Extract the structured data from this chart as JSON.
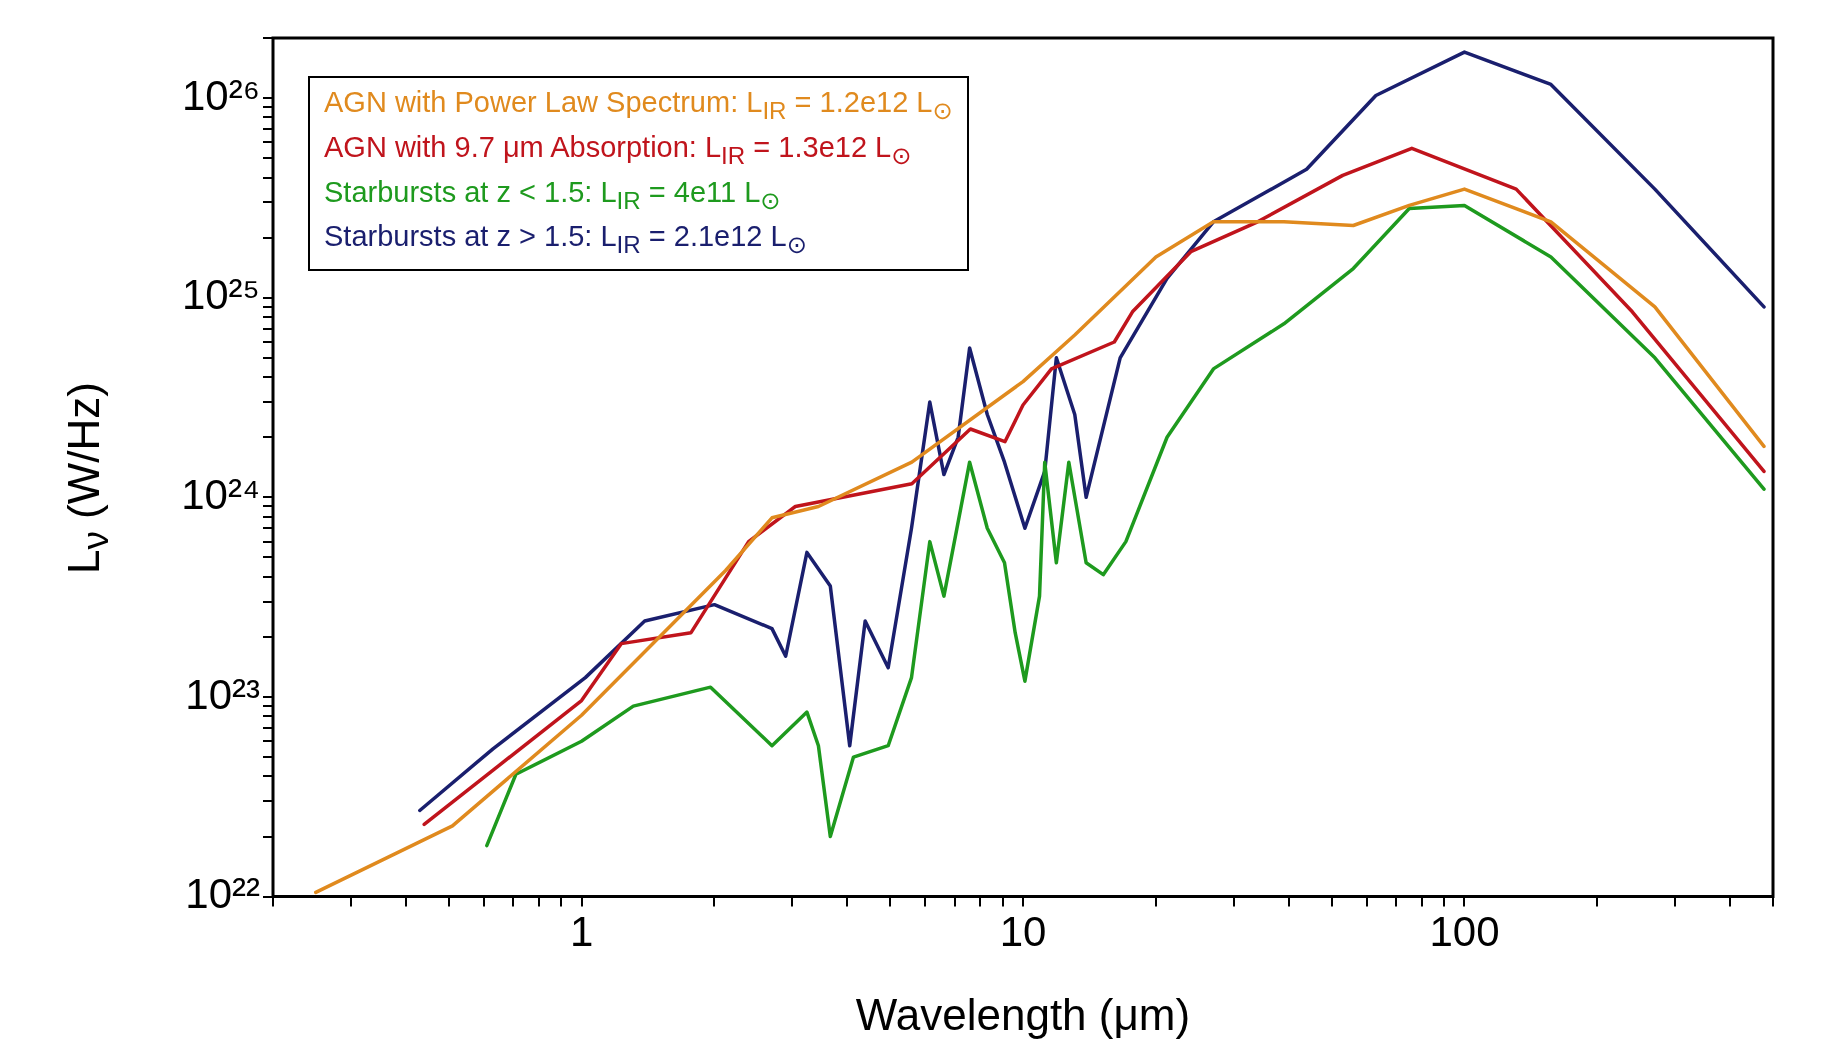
{
  "chart_data": {
    "type": "line",
    "xlabel": "Wavelength (μm)",
    "ylabel": "L$_{ν}$ (W/Hz)",
    "log": "xy",
    "legend": "top left",
    "marker": "none",
    "line_style": "solid",
    "xlim": [
      0.2,
      500
    ],
    "ylim": [
      1e+22,
      2e+26
    ],
    "xticks": [
      {
        "value": 0.2,
        "label": null
      },
      {
        "value": 0.3,
        "label": null
      },
      {
        "value": 0.4,
        "label": null
      },
      {
        "value": 0.5,
        "label": null
      },
      {
        "value": 0.6,
        "label": null
      },
      {
        "value": 0.7,
        "label": null
      },
      {
        "value": 0.8,
        "label": null
      },
      {
        "value": 0.9,
        "label": null
      },
      1,
      {
        "value": 2,
        "label": null
      },
      {
        "value": 3,
        "label": null
      },
      {
        "value": 4,
        "label": null
      },
      {
        "value": 5,
        "label": null
      },
      {
        "value": 6,
        "label": null
      },
      {
        "value": 7,
        "label": null
      },
      {
        "value": 8,
        "label": null
      },
      {
        "value": 9,
        "label": null
      },
      10,
      {
        "value": 20,
        "label": null
      },
      {
        "value": 30,
        "label": null
      },
      {
        "value": 40,
        "label": null
      },
      {
        "value": 50,
        "label": null
      },
      {
        "value": 60,
        "label": null
      },
      {
        "value": 70,
        "label": null
      },
      {
        "value": 80,
        "label": null
      },
      {
        "value": 90,
        "label": null
      },
      100,
      {
        "value": 200,
        "label": null
      },
      {
        "value": 300,
        "label": null
      },
      {
        "value": 400,
        "label": null
      },
      {
        "value": 500,
        "label": null
      }
    ],
    "yticks": [
      {
        "value": 1e+22,
        "label": "10²²"
      },
      {
        "value": 2e+22,
        "label": null
      },
      {
        "value": 3e+22,
        "label": null
      },
      {
        "value": 4e+22,
        "label": null
      },
      {
        "value": 5e+22,
        "label": null
      },
      {
        "value": 6e+22,
        "label": null
      },
      {
        "value": 7e+22,
        "label": null
      },
      {
        "value": 8e+22,
        "label": null
      },
      {
        "value": 9e+22,
        "label": null
      },
      {
        "value": 1e+23,
        "label": "10²³"
      },
      {
        "value": 2e+23,
        "label": null
      },
      {
        "value": 3e+23,
        "label": null
      },
      {
        "value": 4e+23,
        "label": null
      },
      {
        "value": 5e+23,
        "label": null
      },
      {
        "value": 6e+23,
        "label": null
      },
      {
        "value": 7e+23,
        "label": null
      },
      {
        "value": 8e+23,
        "label": null
      },
      {
        "value": 9e+23,
        "label": null
      },
      {
        "value": 1e+24,
        "label": "10²⁴"
      },
      {
        "value": 2e+24,
        "label": null
      },
      {
        "value": 3e+24,
        "label": null
      },
      {
        "value": 4e+24,
        "label": null
      },
      {
        "value": 5e+24,
        "label": null
      },
      {
        "value": 6e+24,
        "label": null
      },
      {
        "value": 7e+24,
        "label": null
      },
      {
        "value": 8e+24,
        "label": null
      },
      {
        "value": 9e+24,
        "label": null
      },
      {
        "value": 1e+25,
        "label": "10²⁵"
      },
      {
        "value": 2e+25,
        "label": null
      },
      {
        "value": 3e+25,
        "label": null
      },
      {
        "value": 4e+25,
        "label": null
      },
      {
        "value": 5e+25,
        "label": null
      },
      {
        "value": 6e+25,
        "label": null
      },
      {
        "value": 7e+25,
        "label": null
      },
      {
        "value": 8e+25,
        "label": null
      },
      {
        "value": 9e+25,
        "label": null
      },
      {
        "value": 1e+26,
        "label": "10²⁶"
      },
      {
        "value": 2e+26,
        "label": null
      }
    ],
    "series": [
      {
        "name": "AGN with Power Law Spectrum: L$_{IR}$ = 1.2e12 L$_{⊙}$",
        "color": "#e08a1e",
        "x": [
          0.25,
          0.51,
          1,
          2.12,
          2.7,
          3.44,
          5.6,
          10,
          13.1,
          20,
          27,
          39,
          56,
          75,
          100,
          157,
          270,
          477
        ],
        "values": [
          1.05e+22,
          2.26e+22,
          8.1e+22,
          4.3e+23,
          7.9e+23,
          9e+23,
          1.5e+24,
          3.8e+24,
          6.5e+24,
          1.6e+25,
          2.4e+25,
          2.4e+25,
          2.3e+25,
          2.9e+25,
          3.5e+25,
          2.4e+25,
          9e+24,
          1.8e+24
        ]
      },
      {
        "name": "AGN with 9.7 μm Absorption: L$_{IR}$ = 1.3e12 L$_{⊙}$",
        "color": "#c0141c",
        "x": [
          0.44,
          1,
          1.23,
          1.77,
          2.39,
          3.05,
          5.6,
          7.6,
          9.1,
          10,
          11.6,
          16.1,
          17.7,
          24,
          34,
          53,
          76,
          131,
          240,
          477
        ],
        "values": [
          2.3e+22,
          9.6e+22,
          1.85e+23,
          2.1e+23,
          6e+23,
          9e+23,
          1.17e+24,
          2.2e+24,
          1.9e+24,
          2.9e+24,
          4.4e+24,
          6e+24,
          8.5e+24,
          1.7e+25,
          2.4e+25,
          4.1e+25,
          5.6e+25,
          3.5e+25,
          8.5e+24,
          1.35e+24
        ]
      },
      {
        "name": "Starbursts at z < 1.5: L$_{IR}$ = 4e11 L$_{⊙}$",
        "color": "#1e9a1e",
        "x": [
          0.61,
          0.71,
          1,
          1.31,
          1.96,
          2.7,
          3.24,
          3.44,
          3.66,
          4.13,
          4.95,
          5.59,
          6.15,
          6.62,
          7.57,
          8.3,
          9.08,
          9.6,
          10.1,
          10.9,
          11.2,
          11.9,
          12.7,
          13.9,
          15.2,
          17.1,
          21.2,
          27,
          39,
          56,
          75,
          100,
          157,
          270,
          477
        ],
        "values": [
          1.8e+22,
          4.1e+22,
          6e+22,
          9e+22,
          1.12e+23,
          5.7e+22,
          8.4e+22,
          5.7e+22,
          2e+22,
          5e+22,
          5.7e+22,
          1.25e+23,
          6e+23,
          3.2e+23,
          1.5e+24,
          7e+23,
          4.7e+23,
          2.1e+23,
          1.2e+23,
          3.2e+23,
          1.5e+24,
          4.7e+23,
          1.5e+24,
          4.7e+23,
          4.1e+23,
          6e+23,
          2e+24,
          4.4e+24,
          7.4e+24,
          1.4e+25,
          2.8e+25,
          2.9e+25,
          1.6e+25,
          5e+24,
          1.1e+24
        ]
      },
      {
        "name": "Starbursts at z > 1.5: L$_{IR}$ = 2.1e12 L$_{⊙}$",
        "color": "#1a1f6e",
        "x": [
          0.43,
          0.63,
          1.02,
          1.39,
          2,
          2.7,
          2.9,
          3.24,
          3.66,
          4.05,
          4.39,
          4.95,
          5.59,
          6.15,
          6.62,
          7.13,
          7.57,
          8.3,
          9.08,
          10.1,
          11.2,
          11.9,
          13.1,
          13.9,
          16.6,
          21.2,
          27,
          43.9,
          63,
          100,
          157,
          270,
          477
        ],
        "values": [
          2.7e+22,
          5.5e+22,
          1.25e+23,
          2.4e+23,
          2.9e+23,
          2.2e+23,
          1.6e+23,
          5.3e+23,
          3.6e+23,
          5.7e+22,
          2.4e+23,
          1.4e+23,
          7e+23,
          3e+24,
          1.3e+24,
          2e+24,
          5.6e+24,
          2.6e+24,
          1.5e+24,
          7e+23,
          1.35e+24,
          5e+24,
          2.6e+24,
          1e+24,
          5e+24,
          1.25e+25,
          2.4e+25,
          4.4e+25,
          1.03e+26,
          1.7e+26,
          1.17e+26,
          3.5e+25,
          9e+24
        ]
      }
    ]
  }
}
